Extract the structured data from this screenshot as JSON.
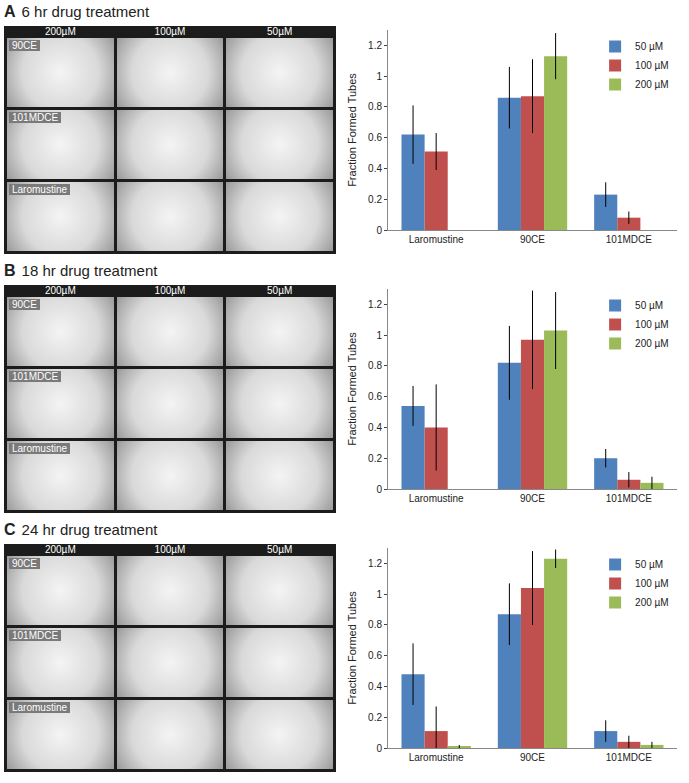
{
  "chart_data": [
    {
      "type": "bar",
      "panel": "A",
      "title": "6 hr drug treatment",
      "image_columns": [
        "200µM",
        "100µM",
        "50µM"
      ],
      "image_rows": [
        "90CE",
        "101MDCE",
        "Laromustine"
      ],
      "y_label": "Fraction Formed Tubes",
      "categories": [
        "Laromustine",
        "90CE",
        "101MDCE"
      ],
      "series": [
        {
          "name": "50 µM",
          "color": "#4f81bd",
          "values": [
            0.62,
            0.86,
            0.23
          ],
          "errors": [
            0.19,
            0.2,
            0.08
          ]
        },
        {
          "name": "100 µM",
          "color": "#c0504d",
          "values": [
            0.51,
            0.87,
            0.08
          ],
          "errors": [
            0.12,
            0.24,
            0.04
          ]
        },
        {
          "name": "200 µM",
          "color": "#9bbb59",
          "values": [
            null,
            1.13,
            null
          ],
          "errors": [
            null,
            0.15,
            null
          ]
        }
      ],
      "ylim": [
        0,
        1.3
      ],
      "yticks": [
        0,
        0.2,
        0.4,
        0.6,
        0.8,
        1,
        1.2
      ],
      "grid": false,
      "legend": "top right"
    },
    {
      "type": "bar",
      "panel": "B",
      "title": "18 hr drug treatment",
      "image_columns": [
        "200µM",
        "100µM",
        "50µM"
      ],
      "image_rows": [
        "90CE",
        "101MDCE",
        "Laromustine"
      ],
      "y_label": "Fraction Formed Tubes",
      "categories": [
        "Laromustine",
        "90CE",
        "101MDCE"
      ],
      "series": [
        {
          "name": "50 µM",
          "color": "#4f81bd",
          "values": [
            0.54,
            0.82,
            0.2
          ],
          "errors": [
            0.13,
            0.24,
            0.06
          ]
        },
        {
          "name": "100 µM",
          "color": "#c0504d",
          "values": [
            0.4,
            0.97,
            0.06
          ],
          "errors": [
            0.28,
            0.32,
            0.05
          ]
        },
        {
          "name": "200 µM",
          "color": "#9bbb59",
          "values": [
            null,
            1.03,
            0.04
          ],
          "errors": [
            null,
            0.25,
            0.04
          ]
        }
      ],
      "ylim": [
        0,
        1.3
      ],
      "yticks": [
        0,
        0.2,
        0.4,
        0.6,
        0.8,
        1,
        1.2
      ],
      "grid": false,
      "legend": "top right"
    },
    {
      "type": "bar",
      "panel": "C",
      "title": "24 hr drug treatment",
      "image_columns": [
        "200µM",
        "100µM",
        "50µM"
      ],
      "image_rows": [
        "90CE",
        "101MDCE",
        "Laromustine"
      ],
      "y_label": "Fraction Formed Tubes",
      "categories": [
        "Laromustine",
        "90CE",
        "101MDCE"
      ],
      "series": [
        {
          "name": "50 µM",
          "color": "#4f81bd",
          "values": [
            0.48,
            0.87,
            0.11
          ],
          "errors": [
            0.2,
            0.2,
            0.07
          ]
        },
        {
          "name": "100 µM",
          "color": "#c0504d",
          "values": [
            0.11,
            1.04,
            0.04
          ],
          "errors": [
            0.16,
            0.24,
            0.04
          ]
        },
        {
          "name": "200 µM",
          "color": "#9bbb59",
          "values": [
            0.01,
            1.23,
            0.02
          ],
          "errors": [
            0.01,
            0.06,
            0.02
          ]
        }
      ],
      "ylim": [
        0,
        1.3
      ],
      "yticks": [
        0,
        0.2,
        0.4,
        0.6,
        0.8,
        1,
        1.2
      ],
      "grid": false,
      "legend": "top right"
    }
  ]
}
